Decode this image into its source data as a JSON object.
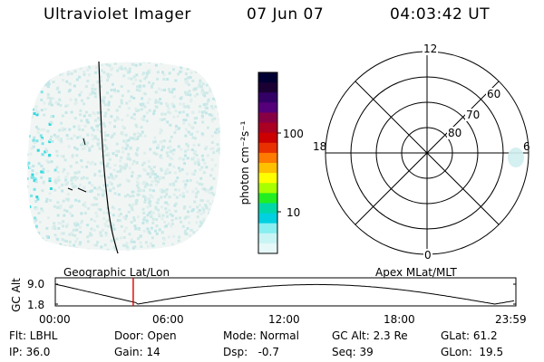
{
  "header": {
    "instrument": "Ultraviolet Imager",
    "date": "07 Jun 07",
    "time": "04:03:42 UT"
  },
  "panels": {
    "left_label": "Geographic Lat/Lon",
    "right_label": "Apex MLat/MLT"
  },
  "colorbar": {
    "unit_label": "photon cm⁻²s⁻¹",
    "ticks": [
      "100",
      "10"
    ],
    "colors": [
      "#000033",
      "#1a0033",
      "#330066",
      "#55007a",
      "#880044",
      "#aa0022",
      "#cc0000",
      "#e83000",
      "#ff7a00",
      "#ffc000",
      "#ffff00",
      "#a8ff00",
      "#22ee22",
      "#00d8a8",
      "#00d0e0",
      "#88eef0",
      "#c8f4f4",
      "#e6f8f8"
    ]
  },
  "polar": {
    "mlt_labels": [
      "12",
      "18",
      "6",
      "0"
    ],
    "lat_labels": [
      "60",
      "70",
      "80"
    ]
  },
  "timeline": {
    "axis_label": "GC Alt",
    "y_ticks": [
      "9.0",
      "1.8"
    ],
    "x_ticks": [
      "00:00",
      "06:00",
      "12:00",
      "18:00",
      "23:59"
    ],
    "marker_time_hours": 4.06,
    "marker_color": "#dd0000"
  },
  "info": {
    "flt": "Flt: LBHL",
    "door": "Door: Open",
    "mode": "Mode: Normal",
    "gc_alt": "GC Alt: 2.3 Re",
    "glat": "GLat: 61.2",
    "ip": "IP: 36.0",
    "gain": "Gain: 14",
    "dsp": "Dsp:   -0.7",
    "seq": "Seq: 39",
    "glon": "GLon:  19.5"
  }
}
